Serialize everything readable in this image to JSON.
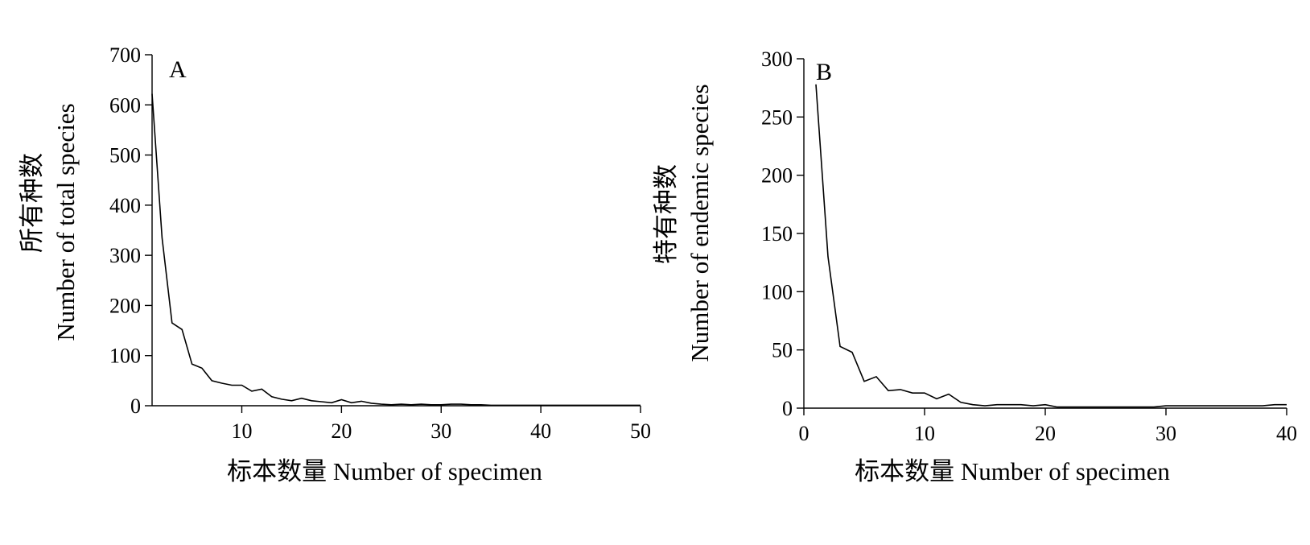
{
  "chart_data": [
    {
      "type": "line",
      "panel_label": "A",
      "xlabel": "标本数量 Number of specimen",
      "ylabel_cn": "所有种数",
      "ylabel_en": "Number of total species",
      "xlim": [
        1,
        50
      ],
      "ylim": [
        0,
        700
      ],
      "xticks": [
        10,
        20,
        30,
        40,
        50
      ],
      "yticks": [
        0,
        100,
        200,
        300,
        400,
        500,
        600,
        700
      ],
      "grid": false,
      "legend": "none",
      "x": [
        1,
        2,
        3,
        4,
        5,
        6,
        7,
        8,
        9,
        10,
        11,
        12,
        13,
        14,
        15,
        16,
        17,
        18,
        19,
        20,
        21,
        22,
        23,
        24,
        25,
        26,
        27,
        28,
        29,
        30,
        31,
        32,
        33,
        34,
        35,
        36,
        37,
        38,
        39,
        40,
        41,
        42,
        43,
        44,
        45,
        46,
        47,
        48,
        49,
        50
      ],
      "y": [
        622,
        335,
        165,
        152,
        83,
        75,
        50,
        45,
        41,
        41,
        29,
        33,
        18,
        13,
        10,
        15,
        10,
        8,
        6,
        12,
        6,
        9,
        5,
        3,
        2,
        3,
        2,
        3,
        2,
        2,
        3,
        3,
        2,
        2,
        1,
        1,
        1,
        1,
        1,
        1,
        1,
        1,
        1,
        1,
        1,
        1,
        1,
        1,
        1,
        1
      ]
    },
    {
      "type": "line",
      "panel_label": "B",
      "xlabel": "标本数量 Number of specimen",
      "ylabel_cn": "特有种数",
      "ylabel_en": "Number of endemic species",
      "xlim": [
        0,
        40
      ],
      "ylim": [
        0,
        300
      ],
      "xticks": [
        0,
        10,
        20,
        30,
        40
      ],
      "yticks": [
        0,
        50,
        100,
        150,
        200,
        250,
        300
      ],
      "grid": false,
      "legend": "none",
      "x": [
        1,
        2,
        3,
        4,
        5,
        6,
        7,
        8,
        9,
        10,
        11,
        12,
        13,
        14,
        15,
        16,
        17,
        18,
        19,
        20,
        21,
        22,
        23,
        24,
        25,
        26,
        27,
        28,
        29,
        30,
        31,
        32,
        33,
        34,
        35,
        36,
        37,
        38,
        39,
        40
      ],
      "y": [
        278,
        130,
        53,
        48,
        23,
        27,
        15,
        16,
        13,
        13,
        8,
        12,
        5,
        3,
        2,
        3,
        3,
        3,
        2,
        3,
        1,
        1,
        1,
        1,
        1,
        1,
        1,
        1,
        1,
        2,
        2,
        2,
        2,
        2,
        2,
        2,
        2,
        2,
        3,
        3
      ]
    }
  ]
}
